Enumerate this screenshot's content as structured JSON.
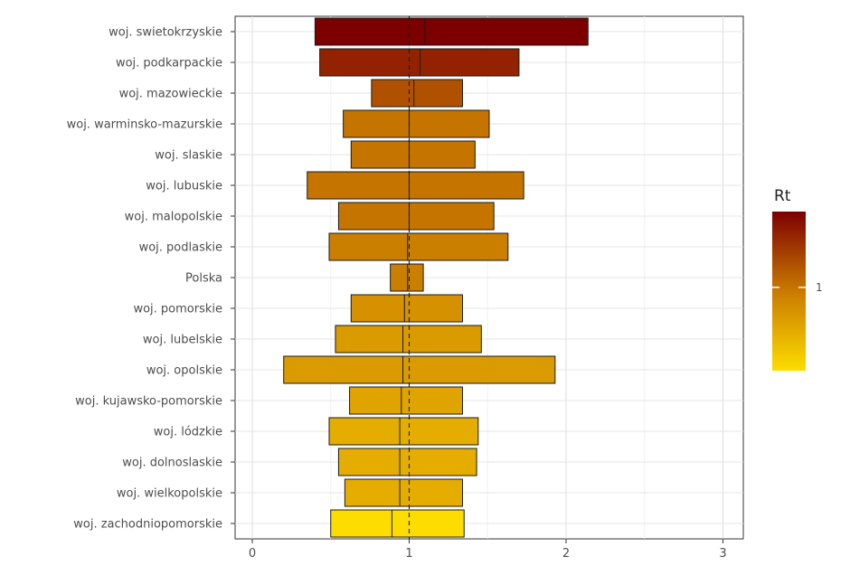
{
  "chart_data": {
    "type": "bar",
    "subtype": "interval-range",
    "categories": [
      "woj. swietokrzyskie",
      "woj. podkarpackie",
      "woj. mazowieckie",
      "woj. warminsko-mazurskie",
      "woj. slaskie",
      "woj. lubuskie",
      "woj. malopolskie",
      "woj. podlaskie",
      "Polska",
      "woj. pomorskie",
      "woj. lubelskie",
      "woj. opolskie",
      "woj. kujawsko-pomorskie",
      "woj. lódzkie",
      "woj. dolnoslaskie",
      "woj. wielkopolskie",
      "woj. zachodniopomorskie"
    ],
    "series": [
      {
        "low": [
          0.4,
          0.43,
          0.76,
          0.58,
          0.63,
          0.35,
          0.55,
          0.49,
          0.88,
          0.63,
          0.53,
          0.2,
          0.62,
          0.49,
          0.55,
          0.59,
          0.5
        ],
        "mid": [
          1.1,
          1.07,
          1.03,
          1.0,
          1.0,
          1.0,
          1.0,
          0.99,
          0.99,
          0.97,
          0.96,
          0.96,
          0.95,
          0.94,
          0.94,
          0.94,
          0.89
        ],
        "high": [
          2.14,
          1.7,
          1.34,
          1.51,
          1.42,
          1.73,
          1.54,
          1.63,
          1.09,
          1.34,
          1.46,
          1.93,
          1.34,
          1.44,
          1.43,
          1.34,
          1.35
        ]
      }
    ],
    "x_ticks": [
      "0",
      "1",
      "2",
      "3"
    ],
    "xlim": [
      -0.1,
      3.1
    ],
    "reference_line": 1,
    "grid": true,
    "legend": {
      "title": "Rt",
      "position": "right",
      "tick_label": "1",
      "tick_value": 1,
      "range": [
        0.89,
        1.1
      ],
      "colors": [
        "#fddc00",
        "#c97a00",
        "#7d0000"
      ]
    }
  }
}
